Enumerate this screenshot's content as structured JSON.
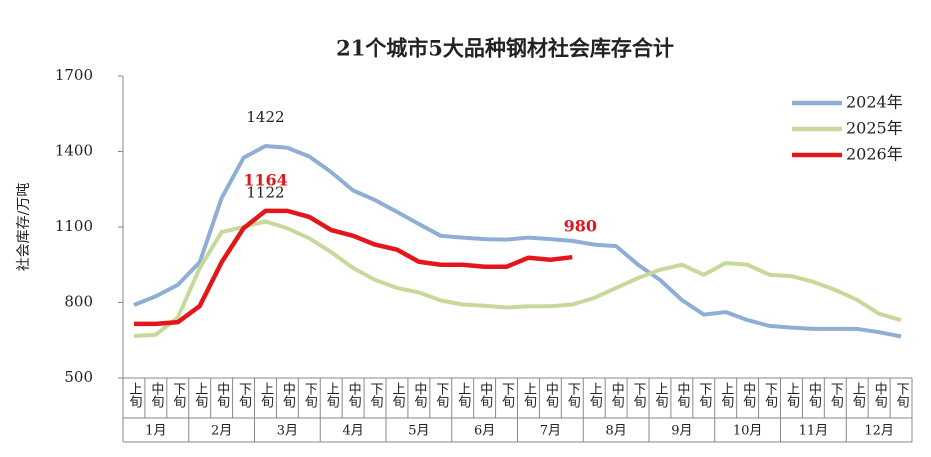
{
  "chart_data": {
    "type": "line",
    "title": "21个城市5大品种钢材社会库存合计",
    "y_label": "社会库存/万吨",
    "categories": [
      "上旬",
      "中旬",
      "下旬",
      "上旬",
      "中旬",
      "下旬",
      "上旬",
      "中旬",
      "下旬",
      "上旬",
      "中旬",
      "下旬",
      "上旬",
      "中旬",
      "下旬",
      "上旬",
      "中旬",
      "下旬",
      "上旬",
      "中旬",
      "下旬",
      "上旬",
      "中旬",
      "下旬",
      "上旬",
      "中旬",
      "下旬",
      "上旬",
      "中旬",
      "下旬",
      "上旬",
      "中旬",
      "下旬",
      "上旬",
      "中旬",
      "下旬"
    ],
    "months": [
      "1月",
      "2月",
      "3月",
      "4月",
      "5月",
      "6月",
      "7月",
      "8月",
      "9月",
      "10月",
      "11月",
      "12月"
    ],
    "ylim": [
      500,
      1700
    ],
    "yticks": [
      500,
      800,
      1100,
      1400,
      1700
    ],
    "legend": "top-right",
    "series": [
      {
        "name": "2024年",
        "color": "#8faed6",
        "values": [
          790,
          825,
          870,
          960,
          1215,
          1375,
          1422,
          1415,
          1380,
          1318,
          1245,
          1207,
          1160,
          1112,
          1065,
          1058,
          1052,
          1050,
          1058,
          1052,
          1045,
          1030,
          1024,
          950,
          890,
          810,
          752,
          762,
          730,
          707,
          700,
          695,
          695,
          695,
          682,
          665
        ],
        "value_labels": [
          null,
          null,
          null,
          null,
          null,
          null,
          "1422",
          null,
          null,
          null,
          null,
          null,
          null,
          null,
          null,
          null,
          null,
          null,
          null,
          null,
          null,
          null,
          null,
          null,
          null,
          null,
          null,
          null,
          null,
          null,
          null,
          null,
          null,
          null,
          null,
          null
        ]
      },
      {
        "name": "2025年",
        "color": "#c6d99b",
        "values": [
          667,
          672,
          740,
          937,
          1080,
          1100,
          1122,
          1095,
          1055,
          1000,
          937,
          890,
          858,
          840,
          808,
          792,
          787,
          780,
          785,
          785,
          792,
          818,
          858,
          897,
          930,
          950,
          910,
          957,
          950,
          910,
          905,
          882,
          850,
          810,
          755,
          730
        ],
        "value_labels": [
          null,
          null,
          null,
          null,
          null,
          null,
          "1122",
          null,
          null,
          null,
          null,
          null,
          null,
          null,
          null,
          null,
          null,
          null,
          null,
          null,
          null,
          null,
          null,
          null,
          null,
          null,
          null,
          null,
          null,
          null,
          null,
          null,
          null,
          null,
          null,
          null
        ]
      },
      {
        "name": "2026年",
        "color": "#e3161b",
        "values": [
          715,
          715,
          722,
          786,
          960,
          1095,
          1164,
          1164,
          1140,
          1088,
          1065,
          1030,
          1010,
          962,
          950,
          950,
          942,
          942,
          978,
          970,
          980,
          null,
          null,
          null,
          null,
          null,
          null,
          null,
          null,
          null,
          null,
          null,
          null,
          null,
          null,
          null
        ],
        "value_labels": [
          null,
          null,
          null,
          null,
          null,
          null,
          "1164",
          null,
          null,
          null,
          null,
          null,
          null,
          null,
          null,
          null,
          null,
          null,
          null,
          null,
          "980",
          null,
          null,
          null,
          null,
          null,
          null,
          null,
          null,
          null,
          null,
          null,
          null,
          null,
          null,
          null
        ]
      }
    ]
  }
}
